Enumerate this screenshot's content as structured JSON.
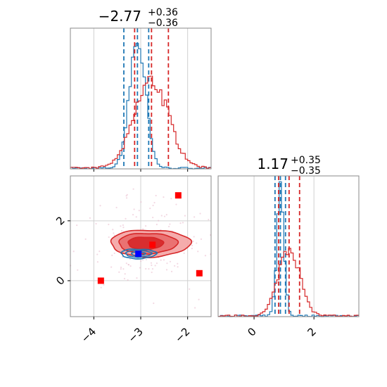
{
  "chart_data": [
    {
      "type": "histogram",
      "panel": "x-marginal",
      "title": {
        "base": "−2.77",
        "plus": "+0.36",
        "minus": "−0.36"
      },
      "xlim": [
        -4.5,
        -1.5
      ],
      "series": [
        {
          "color": "#1f77b4",
          "center": -3.07,
          "sigma": 0.17,
          "peak": 0.91,
          "quantiles": [
            -3.36,
            -2.83
          ]
        },
        {
          "color": "#d62728",
          "center": -2.77,
          "sigma": 0.36,
          "peak": 0.62,
          "quantiles": [
            -3.13,
            -2.41
          ]
        }
      ]
    },
    {
      "type": "scatter",
      "panel": "joint",
      "xlim": [
        -4.5,
        -1.5
      ],
      "ylim": [
        -1.2,
        3.5
      ],
      "x_ticks": [
        -4,
        -3,
        -2
      ],
      "x_tick_labels": [
        "−4",
        "−3",
        "−2"
      ],
      "y_ticks": [
        0,
        2
      ],
      "y_tick_labels": [
        "0",
        "2"
      ],
      "red_contour_levels": [
        {
          "center": [
            -2.8,
            1.25
          ],
          "radii": [
            1.7,
            0.9
          ],
          "fill": "#f4a3a3",
          "opacity": 0.9
        },
        {
          "center": [
            -2.85,
            1.25
          ],
          "radii": [
            1.25,
            0.68
          ],
          "fill": "#e96b6b",
          "opacity": 0.9
        },
        {
          "center": [
            -2.9,
            1.25
          ],
          "radii": [
            0.75,
            0.42
          ],
          "fill": "#d62728",
          "opacity": 0.9
        }
      ],
      "blue_contour_levels": [
        {
          "center": [
            -3.05,
            0.9
          ],
          "radii": [
            0.75,
            0.32
          ]
        },
        {
          "center": [
            -3.05,
            0.9
          ],
          "radii": [
            0.55,
            0.22
          ]
        },
        {
          "center": [
            -3.05,
            0.9
          ],
          "radii": [
            0.3,
            0.12
          ]
        }
      ],
      "red_markers": [
        [
          -3.85,
          0.0
        ],
        [
          -2.75,
          1.2
        ],
        [
          -2.2,
          2.85
        ],
        [
          -1.75,
          0.25
        ]
      ],
      "blue_markers": [
        [
          -3.05,
          0.9
        ]
      ]
    },
    {
      "type": "histogram",
      "panel": "y-marginal",
      "title": {
        "base": "1.17",
        "plus": "+0.35",
        "minus": "−0.35"
      },
      "xlim": [
        -1.2,
        3.5
      ],
      "x_ticks": [
        0,
        2
      ],
      "x_tick_labels": [
        "0",
        "2"
      ],
      "series": [
        {
          "color": "#1f77b4",
          "center": 0.88,
          "sigma": 0.12,
          "peak": 0.86,
          "quantiles": [
            0.7,
            1.05
          ]
        },
        {
          "color": "#d62728",
          "center": 1.17,
          "sigma": 0.35,
          "peak": 0.5,
          "quantiles": [
            0.82,
            1.52
          ]
        }
      ]
    }
  ]
}
